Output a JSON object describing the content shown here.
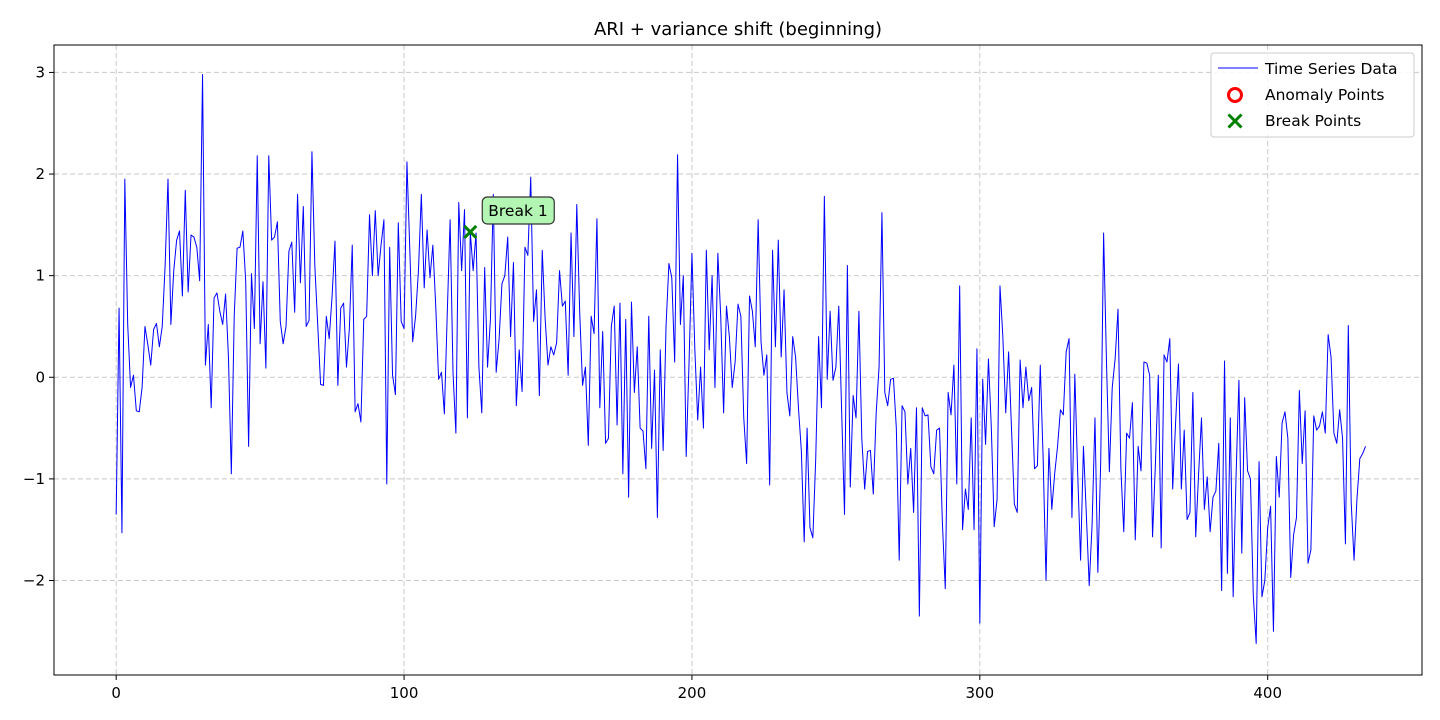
{
  "chart_data": {
    "type": "line",
    "title": "ARI + variance shift (beginning)",
    "xlabel": "",
    "ylabel": "",
    "xlim": [
      -21.6,
      453.6
    ],
    "ylim": [
      -2.93,
      3.27
    ],
    "xticks": [
      0,
      100,
      200,
      300,
      400
    ],
    "yticks": [
      -2,
      -1,
      0,
      1,
      2,
      3
    ],
    "grid": true,
    "legend_position": "top-right",
    "colors": {
      "line": "#0000ff",
      "anomaly": "#ff0000",
      "break": "#008000",
      "annotation_fill": "#b3f5b3"
    },
    "series": [
      {
        "name": "Time Series Data",
        "x_start": 0,
        "values": [
          -1.35,
          0.68,
          -1.53,
          1.95,
          0.52,
          -0.1,
          0.02,
          -0.33,
          -0.34,
          -0.1,
          0.5,
          0.32,
          0.12,
          0.47,
          0.53,
          0.3,
          0.5,
          1.1,
          1.95,
          0.52,
          1.05,
          1.35,
          1.44,
          0.8,
          1.84,
          0.84,
          1.4,
          1.38,
          1.28,
          0.95,
          2.98,
          0.12,
          0.52,
          -0.3,
          0.78,
          0.83,
          0.65,
          0.52,
          0.82,
          0.2,
          -0.95,
          0.6,
          1.27,
          1.28,
          1.44,
          0.94,
          -0.68,
          1.02,
          0.48,
          2.18,
          0.33,
          0.94,
          0.09,
          2.18,
          1.35,
          1.38,
          1.53,
          0.55,
          0.33,
          0.5,
          1.24,
          1.33,
          0.64,
          1.8,
          0.93,
          1.68,
          0.5,
          0.56,
          2.22,
          1.1,
          0.52,
          -0.07,
          -0.08,
          0.6,
          0.38,
          0.8,
          1.34,
          -0.08,
          0.68,
          0.73,
          0.1,
          0.48,
          1.3,
          -0.34,
          -0.26,
          -0.44,
          0.57,
          0.6,
          1.6,
          1.0,
          1.64,
          1.0,
          1.3,
          1.55,
          -1.05,
          1.28,
          0.02,
          -0.17,
          1.52,
          0.55,
          0.48,
          2.12,
          1.25,
          0.35,
          0.6,
          1.05,
          1.8,
          0.88,
          1.45,
          0.98,
          1.3,
          0.7,
          -0.02,
          0.05,
          -0.36,
          0.62,
          1.55,
          0.05,
          -0.55,
          1.72,
          1.05,
          1.65,
          -0.4,
          1.43,
          1.05,
          1.42,
          0.1,
          -0.35,
          1.08,
          0.1,
          0.57,
          1.8,
          0.05,
          0.37,
          0.92,
          1.0,
          1.38,
          0.4,
          1.13,
          -0.28,
          0.27,
          -0.14,
          1.28,
          1.2,
          1.97,
          0.55,
          0.86,
          -0.18,
          1.25,
          0.58,
          0.12,
          0.3,
          0.22,
          0.34,
          1.05,
          0.7,
          0.75,
          0.02,
          1.42,
          0.4,
          1.7,
          0.65,
          -0.08,
          0.1,
          -0.67,
          0.6,
          0.43,
          1.56,
          -0.3,
          0.45,
          -0.65,
          -0.6,
          0.5,
          0.7,
          -0.47,
          0.73,
          -0.95,
          0.57,
          -1.18,
          0.74,
          -0.15,
          0.3,
          -0.5,
          -0.53,
          -0.9,
          0.6,
          -0.7,
          0.07,
          -1.38,
          0.27,
          -0.72,
          0.5,
          1.12,
          0.98,
          0.15,
          2.19,
          0.52,
          1.0,
          -0.78,
          0.15,
          1.22,
          0.28,
          -0.42,
          0.1,
          -0.5,
          1.25,
          0.27,
          1.0,
          -0.1,
          1.22,
          0.6,
          -0.35,
          0.7,
          0.4,
          -0.1,
          0.15,
          0.72,
          0.6,
          -0.4,
          -0.85,
          0.8,
          0.65,
          0.3,
          1.55,
          0.35,
          0.02,
          0.22,
          -1.06,
          1.25,
          0.3,
          1.35,
          0.2,
          0.86,
          -0.15,
          -0.38,
          0.4,
          0.2,
          -0.3,
          -0.72,
          -1.62,
          -0.5,
          -1.48,
          -1.58,
          -0.8,
          0.4,
          -0.3,
          1.78,
          -0.02,
          0.65,
          -0.03,
          0.1,
          0.7,
          -0.33,
          -1.35,
          1.1,
          -1.08,
          -0.18,
          -0.4,
          0.65,
          -0.6,
          -1.1,
          -0.73,
          -0.72,
          -1.15,
          -0.35,
          0.1,
          1.62,
          -0.15,
          -0.28,
          -0.02,
          -0.01,
          -0.5,
          -1.8,
          -0.28,
          -0.34,
          -1.05,
          -0.7,
          -1.33,
          -0.3,
          -2.35,
          -0.3,
          -0.38,
          -0.37,
          -0.88,
          -0.95,
          -0.52,
          -0.5,
          -1.43,
          -2.08,
          -0.15,
          -0.37,
          0.12,
          -1.05,
          0.9,
          -1.5,
          -1.1,
          -1.3,
          -0.4,
          -1.5,
          0.28,
          -2.42,
          -0.02,
          -0.66,
          0.18,
          -0.5,
          -1.47,
          -1.2,
          0.9,
          0.4,
          -0.35,
          0.25,
          -0.5,
          -1.25,
          -1.33,
          0.17,
          -0.3,
          0.1,
          -0.23,
          -0.1,
          -0.9,
          -0.87,
          0.12,
          -0.8,
          -2.0,
          -0.7,
          -1.3,
          -0.95,
          -0.68,
          -0.32,
          -0.37,
          0.25,
          0.38,
          -1.38,
          0.03,
          -0.95,
          -1.8,
          -0.68,
          -1.35,
          -2.05,
          -1.45,
          -0.4,
          -1.92,
          -0.82,
          1.42,
          0.15,
          -0.93,
          -0.1,
          0.18,
          0.67,
          -0.9,
          -1.52,
          -0.55,
          -0.6,
          -0.25,
          -1.6,
          -0.68,
          -0.92,
          0.15,
          0.14,
          0.02,
          -1.57,
          -0.85,
          0.02,
          -1.68,
          0.22,
          0.15,
          0.38,
          -1.1,
          -0.45,
          0.13,
          -1.1,
          -0.52,
          -1.4,
          -1.33,
          -0.15,
          -1.57,
          -0.95,
          -0.4,
          -1.3,
          -0.98,
          -1.52,
          -1.18,
          -1.12,
          -0.65,
          -2.1,
          0.16,
          -1.93,
          -0.4,
          -2.16,
          -0.98,
          -0.03,
          -1.73,
          -0.2,
          -0.92,
          -1.0,
          -2.15,
          -2.62,
          -0.83,
          -2.16,
          -2.0,
          -1.48,
          -1.27,
          -2.5,
          -0.78,
          -1.18,
          -0.45,
          -0.34,
          -0.6,
          -1.97,
          -1.55,
          -1.38,
          -0.13,
          -0.85,
          -0.33,
          -1.83,
          -1.7,
          -0.38,
          -0.52,
          -0.48,
          -0.34,
          -0.55,
          0.42,
          0.2,
          -0.55,
          -0.65,
          -0.32,
          -0.6,
          -1.64,
          0.51,
          -1.23,
          -1.8,
          -1.2,
          -0.8,
          -0.75,
          -0.68
        ]
      },
      {
        "name": "Anomaly Points",
        "points": []
      },
      {
        "name": "Break Points",
        "points": [
          {
            "x": 123,
            "y": 1.43
          }
        ]
      }
    ],
    "annotations": [
      {
        "text": "Break 1",
        "x": 123,
        "y": 1.43
      }
    ]
  }
}
